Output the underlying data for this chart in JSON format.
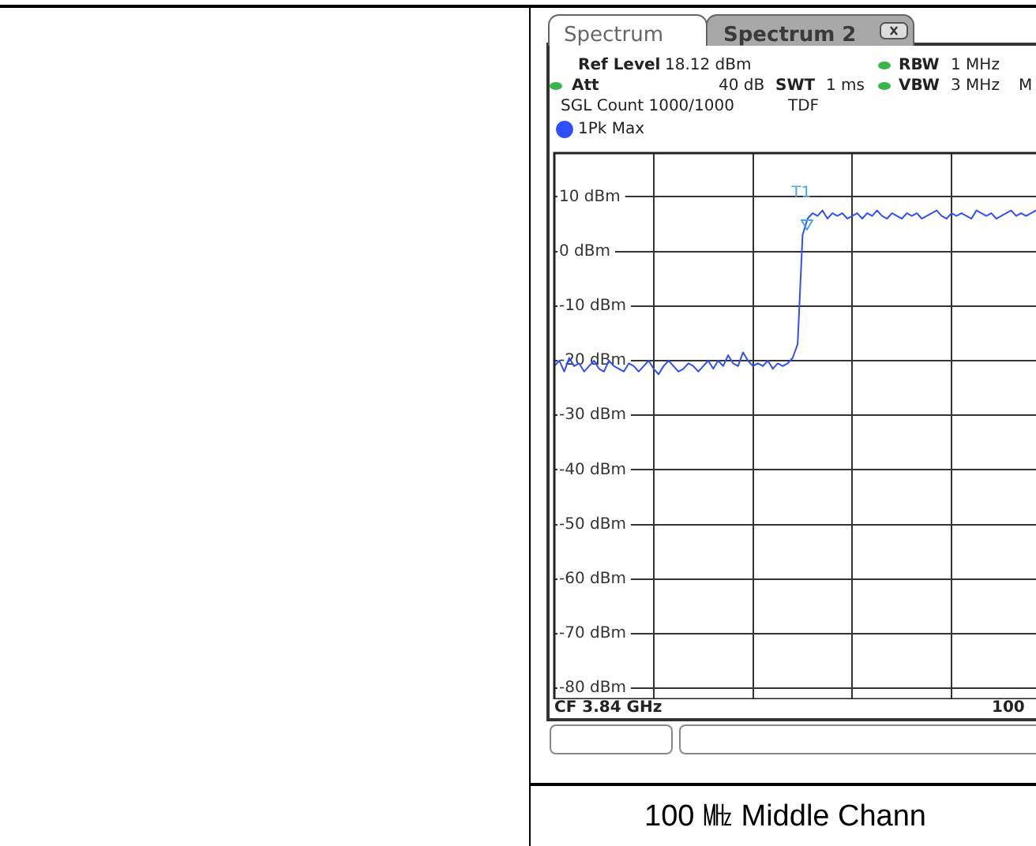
{
  "chart_data": {
    "type": "line",
    "categories": [
      null,
      null,
      null,
      null,
      null,
      null,
      null,
      null,
      null,
      null,
      null,
      null,
      null,
      null,
      null,
      null,
      null,
      null,
      null,
      null,
      null,
      null,
      null,
      null,
      null,
      null,
      null,
      null,
      null,
      null,
      null,
      null,
      null,
      null,
      null,
      null,
      null,
      null,
      null,
      null,
      null,
      null,
      null,
      null,
      null,
      null,
      null,
      null,
      null,
      null,
      null,
      null,
      null,
      null,
      null,
      null,
      null,
      null,
      null,
      null,
      null,
      null,
      null,
      null,
      null,
      null,
      null,
      null,
      null,
      null,
      null,
      null,
      null,
      null,
      null,
      null,
      null,
      null,
      null,
      null,
      null,
      null,
      null,
      null,
      null,
      null,
      null,
      null,
      null,
      null,
      null,
      null,
      null,
      null,
      null,
      null,
      null,
      null
    ],
    "series": [
      {
        "name": "1Pk Max",
        "color": "#2f4fff",
        "values": [
          -21,
          -20,
          -22,
          -19.5,
          -21,
          -20.5,
          -22,
          -21,
          -20,
          -21.5,
          -22,
          -20,
          -21,
          -21.5,
          -22,
          -20.5,
          -21,
          -22,
          -21,
          -20,
          -21.5,
          -22.5,
          -21,
          -20,
          -21,
          -22,
          -21.5,
          -20.5,
          -21,
          -22,
          -21,
          -20,
          -21.5,
          -20,
          -21,
          -19,
          -20.5,
          -21,
          -18.5,
          -20,
          -21,
          -20.5,
          -21,
          -20,
          -21.5,
          -20.5,
          -21,
          -20.5,
          -19.5,
          -17,
          3,
          6,
          7,
          6.5,
          7.5,
          6,
          7,
          6.5,
          7,
          6,
          6.5,
          7,
          6,
          7,
          6.5,
          7.5,
          6.5,
          6,
          7,
          6.5,
          6,
          7,
          6.5,
          7,
          6,
          6.5,
          7,
          7.5,
          6.5,
          6,
          7,
          6.5,
          7,
          6.5,
          6,
          7.5,
          7,
          6.5,
          7,
          6,
          6.5,
          7,
          7.5,
          6.5,
          7,
          6.5,
          7,
          7.5
        ]
      }
    ],
    "ylim": [
      -82,
      18
    ],
    "yticks": [
      {
        "value": 10,
        "label": "10 dBm"
      },
      {
        "value": 0,
        "label": "0 dBm"
      },
      {
        "value": -10,
        "label": "-10 dBm"
      },
      {
        "value": -20,
        "label": "-20 dBm"
      },
      {
        "value": -30,
        "label": "-30 dBm"
      },
      {
        "value": -40,
        "label": "-40 dBm"
      },
      {
        "value": -50,
        "label": "-50 dBm"
      },
      {
        "value": -60,
        "label": "-60 dBm"
      },
      {
        "value": -70,
        "label": "-70 dBm"
      },
      {
        "value": -80,
        "label": "-80 dBm"
      }
    ],
    "grid": true,
    "legend": "top left",
    "tick_labels": "y",
    "marker": "none",
    "annotations": [
      "Spectrum",
      "Spectrum 2",
      "Ref Level",
      "18.12 dBm",
      "Att",
      "40 dB",
      "SWT",
      "1 ms",
      "RBW",
      "1 MHz",
      "VBW",
      "3 MHz",
      "M",
      "SGL Count 1000/1000",
      "TDF",
      "CF 3.84 GHz",
      "100",
      "100 ㎒ Middle Chann",
      {
        "text": "T1",
        "y": 6
      }
    ]
  }
}
